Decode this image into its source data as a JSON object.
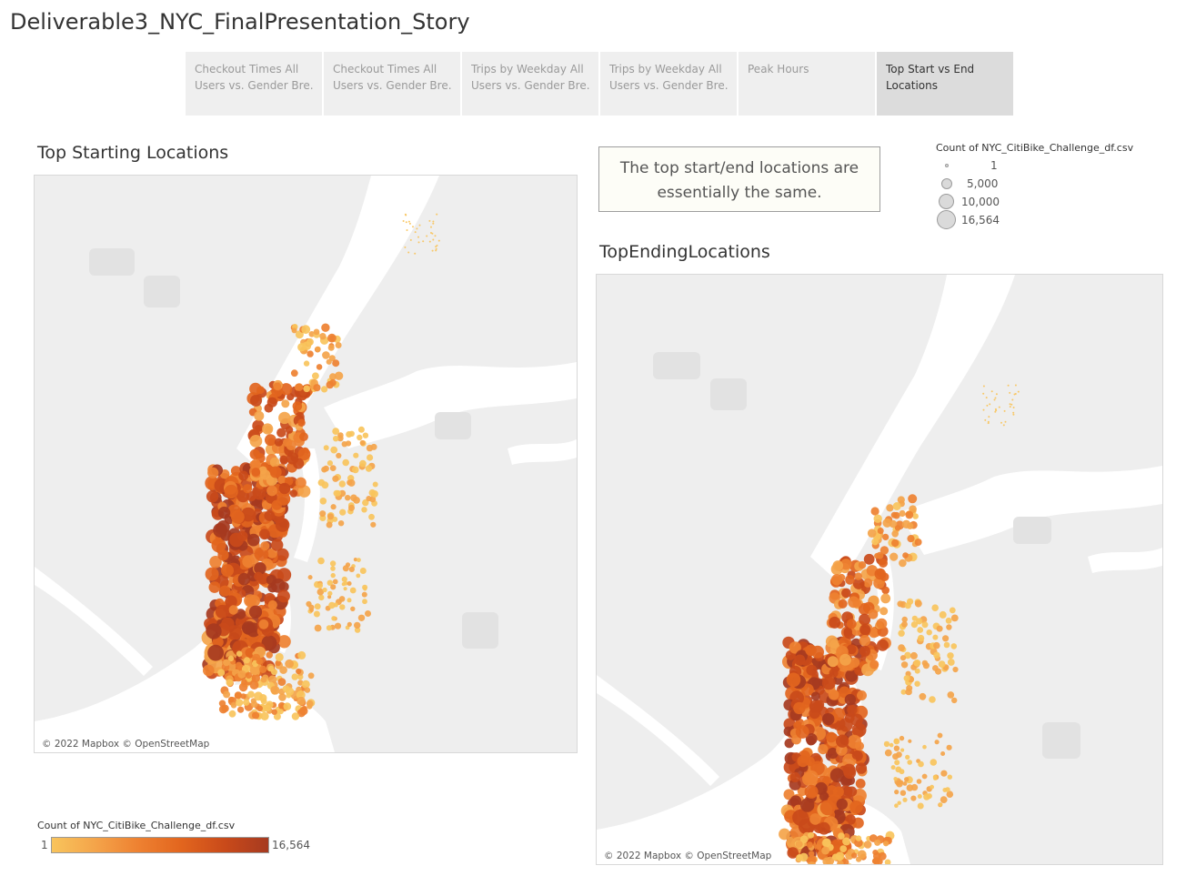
{
  "story": {
    "title": "Deliverable3_NYC_FinalPresentation_Story"
  },
  "tabs": [
    {
      "line1": "Checkout Times All",
      "line2": "Users vs. Gender Bre..",
      "active": false
    },
    {
      "line1": "Checkout Times All",
      "line2": "Users vs. Gender Bre..",
      "active": false
    },
    {
      "line1": "Trips by Weekday All",
      "line2": "Users vs. Gender Bre..",
      "active": false
    },
    {
      "line1": "Trips by Weekday All",
      "line2": "Users vs. Gender Bre..",
      "active": false
    },
    {
      "line1": "Peak Hours",
      "line2": "",
      "active": false
    },
    {
      "line1": "Top Start vs End",
      "line2": "Locations",
      "active": true
    }
  ],
  "sheets": {
    "start": {
      "title": "Top Starting Locations",
      "attribution": "© 2022 Mapbox © OpenStreetMap"
    },
    "end": {
      "title": "TopEndingLocations",
      "attribution": "© 2022 Mapbox © OpenStreetMap"
    }
  },
  "annotation": {
    "line1": "The top start/end locations are",
    "line2": "essentially the same."
  },
  "size_legend": {
    "title": "Count of NYC_CitiBike_Challenge_df.csv",
    "items": [
      "1",
      "5,000",
      "10,000",
      "16,564"
    ]
  },
  "color_legend": {
    "title": "Count of NYC_CitiBike_Challenge_df.csv",
    "min": "1",
    "max": "16,564",
    "colors": [
      "#f8c45c",
      "#f4a44a",
      "#ee8131",
      "#e2651e",
      "#c94a1a",
      "#a63a20"
    ]
  },
  "map_colors": {
    "land": "#eeeeee",
    "water": "#ffffff",
    "park": "#e2e2e2"
  }
}
